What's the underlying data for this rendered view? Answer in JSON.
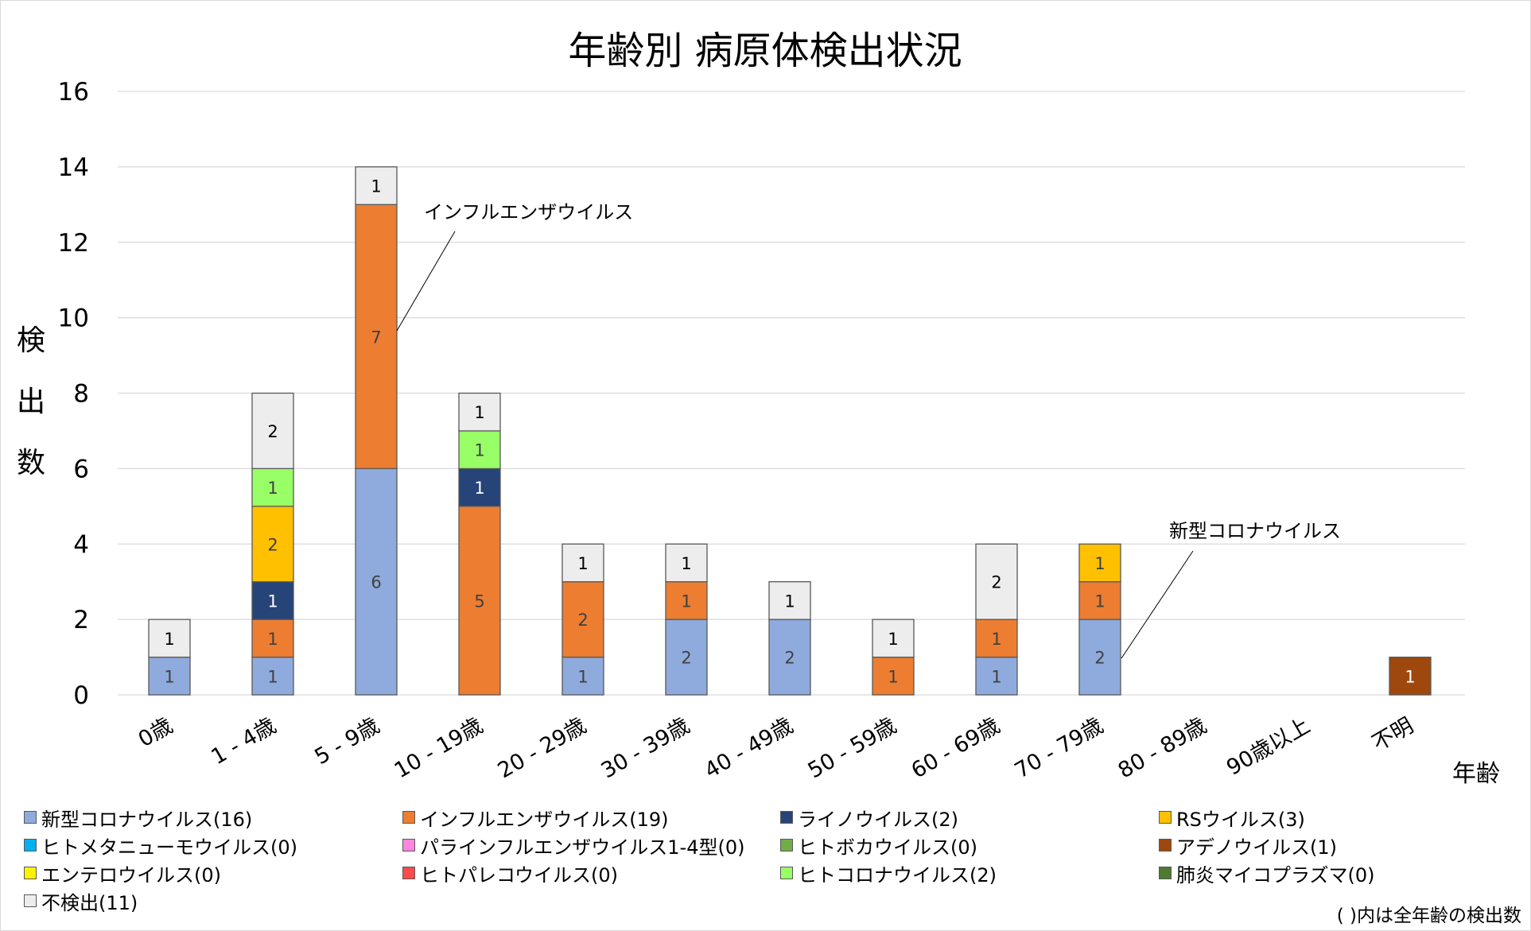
{
  "colors": {
    "gridline": "#D9D9D9",
    "bar_border": "#595959",
    "frame": "#D9D9D9"
  },
  "chart_data": {
    "type": "bar",
    "stacked": true,
    "title": "年齢別 病原体検出状況",
    "xlabel": "年齢",
    "ylabel": "検出数",
    "ylim": [
      0,
      16
    ],
    "yticks": [
      0,
      2,
      4,
      6,
      8,
      10,
      12,
      14,
      16
    ],
    "grid": true,
    "legend_position": "bottom",
    "categories": [
      "0歳",
      "1 - 4歳",
      "5 - 9歳",
      "10 - 19歳",
      "20 - 29歳",
      "30 - 39歳",
      "40 - 49歳",
      "50 - 59歳",
      "60 - 69歳",
      "70 - 79歳",
      "80 - 89歳",
      "90歳以上",
      "不明"
    ],
    "series": [
      {
        "name": "新型コロナウイルス(16)",
        "color": "#8FAADC",
        "label_color": "#404040",
        "values": [
          1,
          1,
          6,
          0,
          1,
          2,
          2,
          0,
          1,
          2,
          0,
          0,
          0
        ]
      },
      {
        "name": "インフルエンザウイルス(19)",
        "color": "#ED7D31",
        "label_color": "#404040",
        "values": [
          0,
          1,
          7,
          5,
          2,
          1,
          0,
          1,
          1,
          1,
          0,
          0,
          0
        ]
      },
      {
        "name": "ライノウイルス(2)",
        "color": "#264478",
        "label_color": "#FFFFFF",
        "values": [
          0,
          1,
          0,
          1,
          0,
          0,
          0,
          0,
          0,
          0,
          0,
          0,
          0
        ]
      },
      {
        "name": "RSウイルス(3)",
        "color": "#FFC000",
        "label_color": "#404040",
        "values": [
          0,
          2,
          0,
          0,
          0,
          0,
          0,
          0,
          0,
          1,
          0,
          0,
          0
        ]
      },
      {
        "name": "ヒトメタニューモウイルス(0)",
        "color": "#00B0F0",
        "label_color": "#404040",
        "values": [
          0,
          0,
          0,
          0,
          0,
          0,
          0,
          0,
          0,
          0,
          0,
          0,
          0
        ]
      },
      {
        "name": "パラインフルエンザウイルス1-4型(0)",
        "color": "#FF85E0",
        "label_color": "#404040",
        "values": [
          0,
          0,
          0,
          0,
          0,
          0,
          0,
          0,
          0,
          0,
          0,
          0,
          0
        ]
      },
      {
        "name": "ヒトボカウイルス(0)",
        "color": "#70AD47",
        "label_color": "#404040",
        "values": [
          0,
          0,
          0,
          0,
          0,
          0,
          0,
          0,
          0,
          0,
          0,
          0,
          0
        ]
      },
      {
        "name": "アデノウイルス(1)",
        "color": "#9E480E",
        "label_color": "#FFFFFF",
        "values": [
          0,
          0,
          0,
          0,
          0,
          0,
          0,
          0,
          0,
          0,
          0,
          0,
          1
        ]
      },
      {
        "name": "エンテロウイルス(0)",
        "color": "#FFF200",
        "label_color": "#404040",
        "values": [
          0,
          0,
          0,
          0,
          0,
          0,
          0,
          0,
          0,
          0,
          0,
          0,
          0
        ]
      },
      {
        "name": "ヒトパレコウイルス(0)",
        "color": "#FF4B4B",
        "label_color": "#404040",
        "values": [
          0,
          0,
          0,
          0,
          0,
          0,
          0,
          0,
          0,
          0,
          0,
          0,
          0
        ]
      },
      {
        "name": "ヒトコロナウイルス(2)",
        "color": "#99FF66",
        "label_color": "#404040",
        "values": [
          0,
          1,
          0,
          1,
          0,
          0,
          0,
          0,
          0,
          0,
          0,
          0,
          0
        ]
      },
      {
        "name": "肺炎マイコプラズマ(0)",
        "color": "#4E7A32",
        "label_color": "#FFFFFF",
        "values": [
          0,
          0,
          0,
          0,
          0,
          0,
          0,
          0,
          0,
          0,
          0,
          0,
          0
        ]
      },
      {
        "name": "不検出(11)",
        "color": "#EDEDED",
        "label_color": "#000000",
        "values": [
          1,
          2,
          1,
          1,
          1,
          1,
          1,
          1,
          2,
          0,
          0,
          0,
          0
        ]
      }
    ],
    "legend_order": [
      0,
      1,
      2,
      3,
      4,
      5,
      6,
      7,
      8,
      9,
      10,
      11,
      12
    ],
    "annotations": [
      {
        "text": "インフルエンザウイルス",
        "category": "5 - 9歳",
        "series": "インフルエンザウイルス(19)"
      },
      {
        "text": "新型コロナウイルス",
        "category": "70 - 79歳",
        "series": "新型コロナウイルス(16)"
      }
    ],
    "footnote": "( )内は全年齢の検出数"
  }
}
